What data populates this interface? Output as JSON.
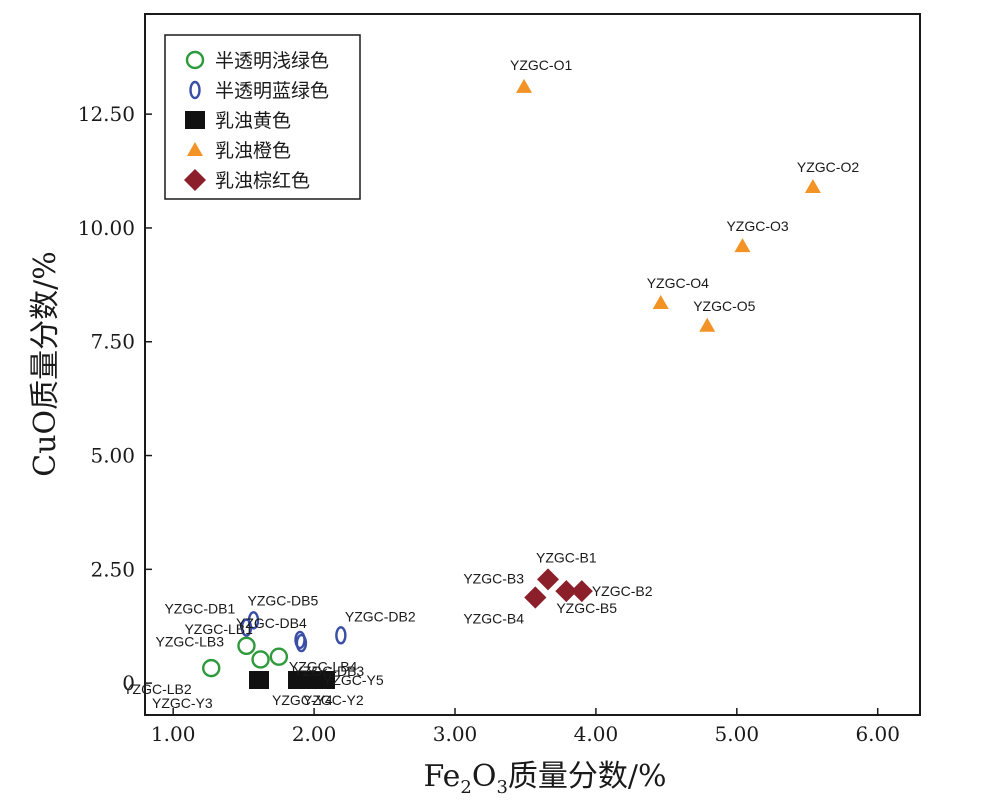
{
  "chart_data": {
    "type": "scatter",
    "xlabel_main": "Fe",
    "xlabel_sub1": "2",
    "xlabel_mid": "O",
    "xlabel_sub2": "3",
    "xlabel_tail": "质量分数/%",
    "ylabel": "CuO质量分数/%",
    "xlim": [
      0.8,
      6.3
    ],
    "ylim": [
      -0.7,
      14.7
    ],
    "xticks": [
      1.0,
      2.0,
      3.0,
      4.0,
      5.0,
      6.0
    ],
    "xtick_labels": [
      "1.00",
      "2.00",
      "3.00",
      "4.00",
      "5.00",
      "6.00"
    ],
    "yticks": [
      0,
      2.5,
      5.0,
      7.5,
      10.0,
      12.5
    ],
    "ytick_labels": [
      "0",
      "2.50",
      "5.00",
      "7.50",
      "10.00",
      "12.50"
    ],
    "grid": false,
    "legend_position": "top-left",
    "series": [
      {
        "name": "半透明浅绿色",
        "marker": "circle-open",
        "color": "#2e9a3c",
        "points": [
          {
            "label": "YZGC-LB1",
            "x": 1.52,
            "y": 0.82
          },
          {
            "label": "YZGC-LB2",
            "x": 1.27,
            "y": 0.33
          },
          {
            "label": "YZGC-LB3",
            "x": 1.62,
            "y": 0.52
          },
          {
            "label": "YZGC-LB4",
            "x": 1.75,
            "y": 0.58
          }
        ]
      },
      {
        "name": "半透明蓝绿色",
        "marker": "ellipse-open",
        "color": "#3a4ea6",
        "points": [
          {
            "label": "YZGC-DB1",
            "x": 1.52,
            "y": 1.22
          },
          {
            "label": "YZGC-DB2",
            "x": 2.19,
            "y": 1.05
          },
          {
            "label": "YZGC-DB3",
            "x": 1.91,
            "y": 0.88
          },
          {
            "label": "YZGC-DB4",
            "x": 1.9,
            "y": 0.95
          },
          {
            "label": "YZGC-DB5",
            "x": 1.57,
            "y": 1.38
          }
        ]
      },
      {
        "name": "乳浊黄色",
        "marker": "square",
        "color": "#111111",
        "points": [
          {
            "label": "YZGC-Y3",
            "x": 1.57,
            "y": 0.02
          },
          {
            "label": "YZGC-Y4",
            "x": 1.85,
            "y": 0.02
          },
          {
            "label": "YZGC-Y2",
            "x": 1.96,
            "y": 0.02
          },
          {
            "label": "YZGC-Y5",
            "x": 2.04,
            "y": 0.02
          }
        ]
      },
      {
        "name": "乳浊橙色",
        "marker": "triangle",
        "color": "#f39325",
        "points": [
          {
            "label": "YZGC-O1",
            "x": 3.49,
            "y": 13.1
          },
          {
            "label": "YZGC-O2",
            "x": 5.54,
            "y": 10.9
          },
          {
            "label": "YZGC-O3",
            "x": 5.04,
            "y": 9.6
          },
          {
            "label": "YZGC-O4",
            "x": 4.46,
            "y": 8.35
          },
          {
            "label": "YZGC-O5",
            "x": 4.79,
            "y": 7.85
          }
        ]
      },
      {
        "name": "乳浊棕红色",
        "marker": "diamond",
        "color": "#8b1f2a",
        "points": [
          {
            "label": "YZGC-B1",
            "x": 3.66,
            "y": 2.28
          },
          {
            "label": "YZGC-B2",
            "x": 3.9,
            "y": 2.02
          },
          {
            "label": "YZGC-B3",
            "x": 3.57,
            "y": 1.88
          },
          {
            "label": "YZGC-B4",
            "x": 3.57,
            "y": 1.88
          },
          {
            "label": "YZGC-B5",
            "x": 3.79,
            "y": 2.02
          }
        ]
      }
    ]
  }
}
